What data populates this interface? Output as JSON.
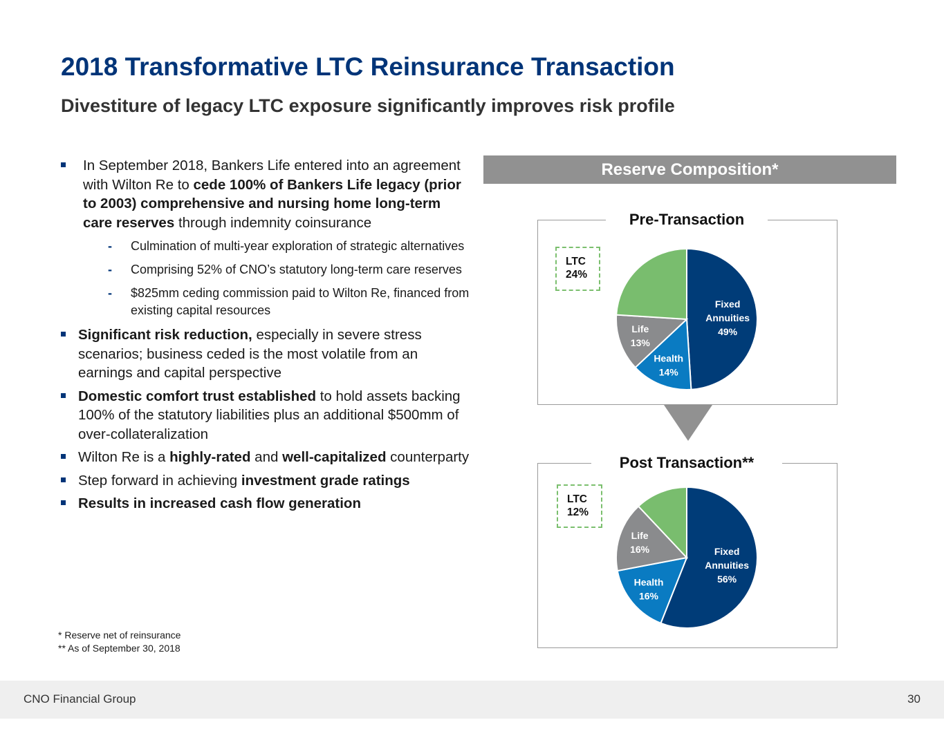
{
  "title": "2018 Transformative LTC Reinsurance Transaction",
  "subtitle": "Divestiture of legacy LTC exposure significantly improves risk profile",
  "bullets": {
    "b1": {
      "pre": "In September 2018, Bankers Life entered into an agreement with Wilton Re to ",
      "bold": "cede 100% of Bankers Life legacy (prior to 2003) comprehensive and nursing home long-term care reserves",
      "post": " through indemnity coinsurance"
    },
    "sub": [
      "Culmination of multi-year exploration of strategic alternatives",
      "Comprising 52% of CNO’s statutory long-term care reserves",
      "$825mm ceding commission paid to Wilton Re, financed from existing capital resources"
    ],
    "b2": {
      "bold": "Significant risk reduction,",
      "post": " especially in severe stress scenarios; business ceded is the most volatile from an earnings and capital perspective"
    },
    "b3": {
      "bold": "Domestic comfort trust established",
      "post": " to hold assets backing 100% of the statutory liabilities plus an additional $500mm of over-collateralization"
    },
    "b4": {
      "pre": "Wilton Re is a ",
      "bold1": "highly-rated",
      "mid": " and ",
      "bold2": "well-capitalized",
      "post": " counterparty"
    },
    "b5": {
      "pre": "Step forward in achieving ",
      "bold": "investment grade ratings"
    },
    "b6": {
      "bold": "Results in increased cash flow generation"
    }
  },
  "footnotes": [
    "*   Reserve net of reinsurance",
    "**  As of September 30, 2018"
  ],
  "footer": {
    "company": "CNO Financial Group",
    "page": "30"
  },
  "reserve_header": "Reserve Composition*",
  "chart_data": [
    {
      "type": "pie",
      "title": "Pre-Transaction",
      "callout": {
        "line1": "LTC",
        "line2": "24%"
      },
      "slices": [
        {
          "label1": "Fixed",
          "label2": "Annuities",
          "pct_label": "49%",
          "value": 49,
          "color": "#003C78"
        },
        {
          "label1": "Health",
          "label2": "",
          "pct_label": "14%",
          "value": 14,
          "color": "#0A7BC2"
        },
        {
          "label1": "Life",
          "label2": "",
          "pct_label": "13%",
          "value": 13,
          "color": "#8A8B8D"
        },
        {
          "label1": "LTC",
          "label2": "",
          "pct_label": "24%",
          "value": 24,
          "color": "#79BD6E"
        }
      ]
    },
    {
      "type": "pie",
      "title": "Post Transaction**",
      "callout": {
        "line1": "LTC",
        "line2": "12%"
      },
      "slices": [
        {
          "label1": "Fixed",
          "label2": "Annuities",
          "pct_label": "56%",
          "value": 56,
          "color": "#003C78"
        },
        {
          "label1": "Health",
          "label2": "",
          "pct_label": "16%",
          "value": 16,
          "color": "#0A7BC2"
        },
        {
          "label1": "Life",
          "label2": "",
          "pct_label": "16%",
          "value": 16,
          "color": "#8A8B8D"
        },
        {
          "label1": "LTC",
          "label2": "",
          "pct_label": "12%",
          "value": 12,
          "color": "#79BD6E"
        }
      ]
    }
  ]
}
